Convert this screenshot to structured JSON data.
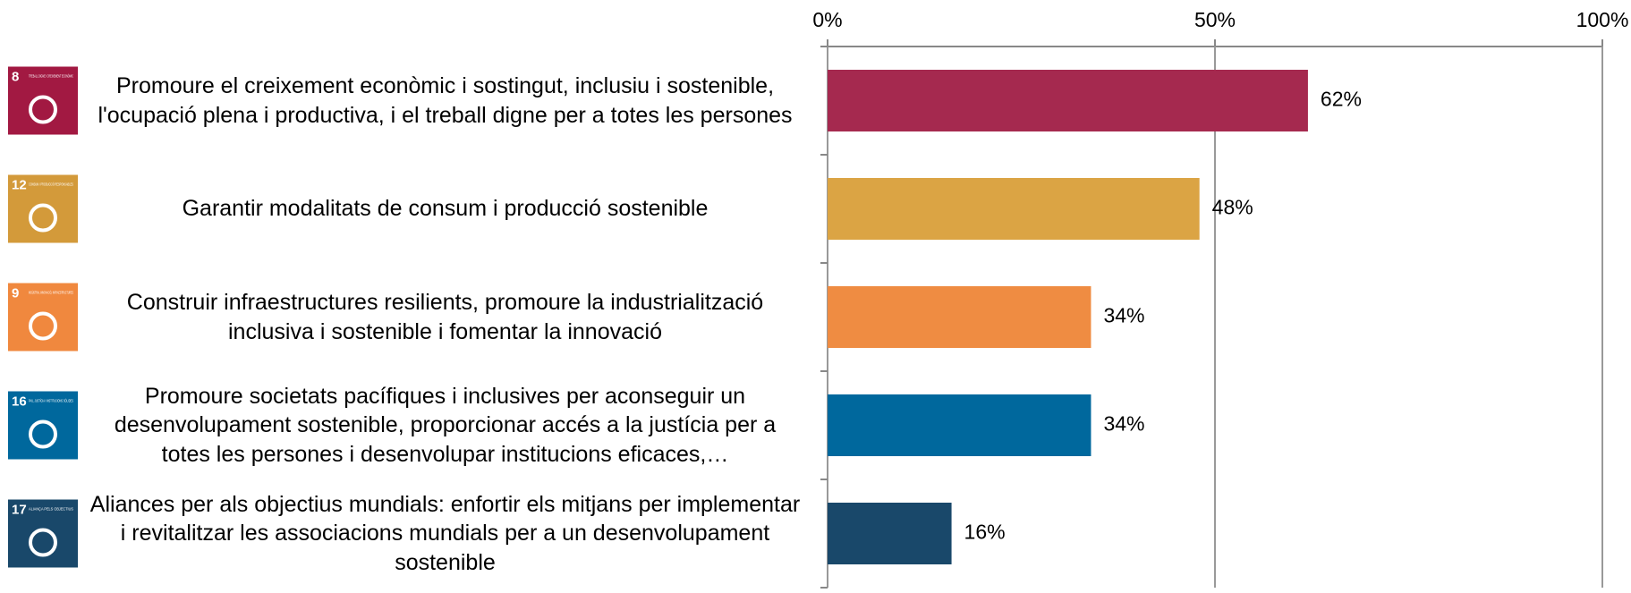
{
  "chart_data": {
    "type": "hbar",
    "categories": [
      "Promoure el creixement econòmic i sostingut, inclusiu i sostenible, l'ocupació plena i productiva, i el treball digne per a totes les persones",
      "Garantir modalitats de consum i producció sostenible",
      "Construir infraestructures resilients, promoure la industrialització inclusiva i sostenible i fomentar la innovació",
      "Promoure societats pacífiques i inclusives per aconseguir un desenvolupament sostenible, proporcionar accés a la justícia per a totes les persones i desenvolupar institucions eficaces,…",
      "Aliances per als objectius mundials: enfortir els mitjans per implementar i revitalitzar les associacions mundials per a un desenvolupament sostenible"
    ],
    "values": [
      62,
      48,
      34,
      34,
      16
    ],
    "value_labels": [
      "62%",
      "48%",
      "34%",
      "34%",
      "16%"
    ],
    "colors": [
      "#a5294f",
      "#dba444",
      "#ef8c42",
      "#00689d",
      "#19486a"
    ],
    "icons": [
      {
        "number": 8,
        "label": "TREBALL DIGNE I CREIXEMENT ECONÒMIC",
        "color": "#a21942"
      },
      {
        "number": 12,
        "label": "CONSUM I PRODUCCIÓ RESPONSABLES",
        "color": "#d39a3a"
      },
      {
        "number": 9,
        "label": "INDÚSTRIA, INNOVACIÓ, INFRAESTRUCTURES",
        "color": "#f0883e"
      },
      {
        "number": 16,
        "label": "PAU, JUSTÍCIA I INSTITUCIONS SÒLIDES",
        "color": "#00689d"
      },
      {
        "number": 17,
        "label": "ALIANÇA PELS OBJECTIUS",
        "color": "#19486a"
      }
    ],
    "xlim": [
      0,
      100
    ],
    "xticks": [
      {
        "value": 0,
        "label": "0%"
      },
      {
        "value": 50,
        "label": "50%"
      },
      {
        "value": 100,
        "label": "100%"
      }
    ],
    "grid": true
  }
}
